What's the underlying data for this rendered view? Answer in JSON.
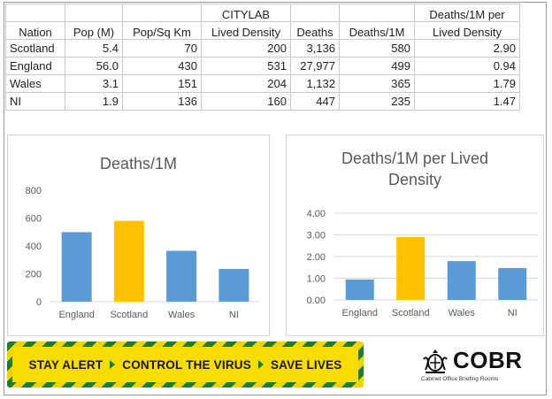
{
  "table": {
    "header_top": [
      "",
      "",
      "",
      "CITYLAB",
      "",
      "",
      "Deaths/1M per"
    ],
    "header_bottom": [
      "Nation",
      "Pop (M)",
      "Pop/Sq Km",
      "Lived Density",
      "Deaths",
      "Deaths/1M",
      "Lived Density"
    ],
    "rows": [
      [
        "Scotland",
        "5.4",
        "70",
        "200",
        "3,136",
        "580",
        "2.90"
      ],
      [
        "England",
        "56.0",
        "430",
        "531",
        "27,977",
        "499",
        "0.94"
      ],
      [
        "Wales",
        "3.1",
        "151",
        "204",
        "1,132",
        "365",
        "1.79"
      ],
      [
        "NI",
        "1.9",
        "136",
        "160",
        "447",
        "235",
        "1.47"
      ]
    ]
  },
  "chart_data": [
    {
      "type": "bar",
      "title": "Deaths/1M",
      "categories": [
        "England",
        "Scotland",
        "Wales",
        "NI"
      ],
      "values": [
        499,
        580,
        365,
        235
      ],
      "ylim": [
        0,
        800
      ],
      "yticks": [
        "0",
        "200",
        "400",
        "600",
        "800"
      ],
      "grid": false,
      "colors": [
        "#5b9bd5",
        "#ffc000",
        "#5b9bd5",
        "#5b9bd5"
      ]
    },
    {
      "type": "bar",
      "title": "Deaths/1M per Lived Density",
      "categories": [
        "England",
        "Scotland",
        "Wales",
        "NI"
      ],
      "values": [
        0.94,
        2.9,
        1.79,
        1.47
      ],
      "ylim": [
        0,
        4
      ],
      "yticks": [
        "0.00",
        "1.00",
        "2.00",
        "3.00",
        "4.00"
      ],
      "grid": true,
      "colors": [
        "#5b9bd5",
        "#ffc000",
        "#5b9bd5",
        "#5b9bd5"
      ]
    }
  ],
  "banner": {
    "part1": "STAY ALERT",
    "part2": "CONTROL THE VIRUS",
    "part3": "SAVE LIVES"
  },
  "logo": {
    "name": "COBR",
    "subtitle": "Cabinet Office Briefing Rooms"
  },
  "colors": {
    "accent_blue": "#5b9bd5",
    "accent_gold": "#ffc000",
    "banner_green": "#1e7b34",
    "banner_yellow": "#f7dc00"
  }
}
